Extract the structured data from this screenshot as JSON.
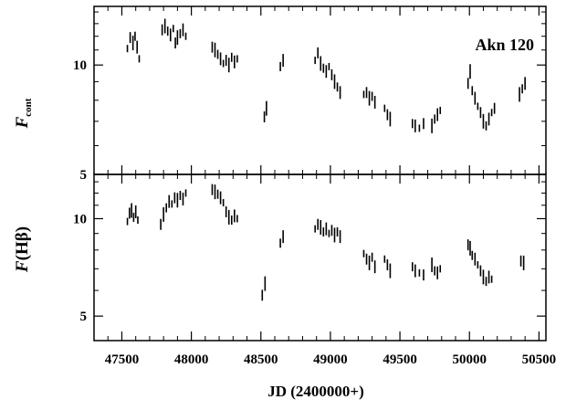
{
  "chart_data": [
    {
      "type": "scatter",
      "panel": "top",
      "annotation": "Akn 120",
      "ylabel_main": "F",
      "ylabel_sub": "cont",
      "yscale": "log",
      "ylim": [
        5,
        14.5
      ],
      "yticks": [
        5,
        10
      ],
      "ytick_labels": [
        "5",
        "10"
      ],
      "xlim": [
        47300,
        50550
      ],
      "points": [
        [
          47540,
          11.1
        ],
        [
          47560,
          11.9
        ],
        [
          47580,
          11.5
        ],
        [
          47595,
          12.0
        ],
        [
          47610,
          11.2
        ],
        [
          47625,
          10.4
        ],
        [
          47790,
          12.5
        ],
        [
          47810,
          12.8
        ],
        [
          47830,
          12.4
        ],
        [
          47850,
          12.1
        ],
        [
          47870,
          12.6
        ],
        [
          47885,
          11.5
        ],
        [
          47900,
          11.9
        ],
        [
          47920,
          12.2
        ],
        [
          47940,
          12.5
        ],
        [
          47960,
          12.0
        ],
        [
          48150,
          11.2
        ],
        [
          48170,
          11.0
        ],
        [
          48190,
          10.7
        ],
        [
          48210,
          10.4
        ],
        [
          48230,
          10.1
        ],
        [
          48250,
          10.3
        ],
        [
          48270,
          10.0
        ],
        [
          48290,
          10.5
        ],
        [
          48310,
          10.2
        ],
        [
          48330,
          10.4
        ],
        [
          48525,
          7.2
        ],
        [
          48540,
          7.6
        ],
        [
          48640,
          9.9
        ],
        [
          48660,
          10.3
        ],
        [
          48890,
          10.3
        ],
        [
          48910,
          10.8
        ],
        [
          48930,
          10.1
        ],
        [
          48950,
          9.8
        ],
        [
          48970,
          9.6
        ],
        [
          48990,
          9.9
        ],
        [
          49010,
          9.4
        ],
        [
          49030,
          9.0
        ],
        [
          49050,
          8.7
        ],
        [
          49070,
          8.4
        ],
        [
          49240,
          8.3
        ],
        [
          49260,
          8.4
        ],
        [
          49280,
          8.1
        ],
        [
          49300,
          8.2
        ],
        [
          49320,
          7.9
        ],
        [
          49390,
          7.6
        ],
        [
          49410,
          7.3
        ],
        [
          49430,
          7.1
        ],
        [
          49590,
          6.9
        ],
        [
          49610,
          6.8
        ],
        [
          49640,
          6.7
        ],
        [
          49670,
          6.9
        ],
        [
          49730,
          6.8
        ],
        [
          49750,
          7.1
        ],
        [
          49770,
          7.3
        ],
        [
          49790,
          7.5
        ],
        [
          49990,
          8.9
        ],
        [
          50005,
          9.6
        ],
        [
          50020,
          8.5
        ],
        [
          50040,
          8.1
        ],
        [
          50060,
          7.7
        ],
        [
          50080,
          7.4
        ],
        [
          50100,
          7.0
        ],
        [
          50120,
          6.8
        ],
        [
          50140,
          7.1
        ],
        [
          50160,
          7.4
        ],
        [
          50180,
          7.6
        ],
        [
          50360,
          8.3
        ],
        [
          50380,
          8.6
        ],
        [
          50400,
          8.9
        ]
      ]
    },
    {
      "type": "scatter",
      "panel": "bottom",
      "ylabel_main": "F",
      "ylabel_sub": "(Hβ)",
      "yscale": "log",
      "ylim": [
        4.2,
        13.7
      ],
      "yticks": [
        5,
        10
      ],
      "ytick_labels": [
        "5",
        "10"
      ],
      "xlim": [
        47300,
        50550
      ],
      "xticks": [
        47500,
        48000,
        48500,
        49000,
        49500,
        50000,
        50500
      ],
      "xtick_labels": [
        "47500",
        "48000",
        "48500",
        "49000",
        "49500",
        "50000",
        "50500"
      ],
      "xlabel": "JD (2400000+)",
      "points": [
        [
          47540,
          9.8
        ],
        [
          47555,
          10.4
        ],
        [
          47570,
          10.6
        ],
        [
          47585,
          10.1
        ],
        [
          47600,
          10.5
        ],
        [
          47615,
          9.9
        ],
        [
          47780,
          9.6
        ],
        [
          47800,
          10.3
        ],
        [
          47820,
          10.8
        ],
        [
          47840,
          11.3
        ],
        [
          47860,
          11.1
        ],
        [
          47880,
          11.6
        ],
        [
          47900,
          11.4
        ],
        [
          47920,
          11.8
        ],
        [
          47940,
          11.5
        ],
        [
          47960,
          12.0
        ],
        [
          48150,
          12.3
        ],
        [
          48170,
          12.1
        ],
        [
          48190,
          11.9
        ],
        [
          48210,
          11.6
        ],
        [
          48230,
          11.2
        ],
        [
          48250,
          10.5
        ],
        [
          48270,
          10.1
        ],
        [
          48290,
          9.9
        ],
        [
          48310,
          10.2
        ],
        [
          48330,
          10.0
        ],
        [
          48510,
          5.8
        ],
        [
          48530,
          6.3
        ],
        [
          48640,
          8.4
        ],
        [
          48660,
          8.8
        ],
        [
          48890,
          9.3
        ],
        [
          48910,
          9.6
        ],
        [
          48930,
          9.4
        ],
        [
          48950,
          9.1
        ],
        [
          48970,
          9.3
        ],
        [
          48990,
          9.0
        ],
        [
          49010,
          9.2
        ],
        [
          49030,
          8.9
        ],
        [
          49050,
          9.1
        ],
        [
          49070,
          8.8
        ],
        [
          49240,
          7.8
        ],
        [
          49260,
          7.5
        ],
        [
          49280,
          7.3
        ],
        [
          49300,
          7.6
        ],
        [
          49320,
          7.1
        ],
        [
          49390,
          7.5
        ],
        [
          49410,
          7.2
        ],
        [
          49430,
          6.9
        ],
        [
          49590,
          7.1
        ],
        [
          49610,
          6.9
        ],
        [
          49640,
          6.8
        ],
        [
          49670,
          6.7
        ],
        [
          49730,
          7.2
        ],
        [
          49750,
          6.9
        ],
        [
          49770,
          6.8
        ],
        [
          49790,
          7.0
        ],
        [
          49990,
          8.3
        ],
        [
          50005,
          8.1
        ],
        [
          50020,
          7.7
        ],
        [
          50040,
          7.5
        ],
        [
          50060,
          7.2
        ],
        [
          50080,
          6.9
        ],
        [
          50100,
          6.6
        ],
        [
          50120,
          6.4
        ],
        [
          50140,
          6.6
        ],
        [
          50160,
          6.5
        ],
        [
          50370,
          7.4
        ],
        [
          50390,
          7.3
        ]
      ]
    }
  ]
}
